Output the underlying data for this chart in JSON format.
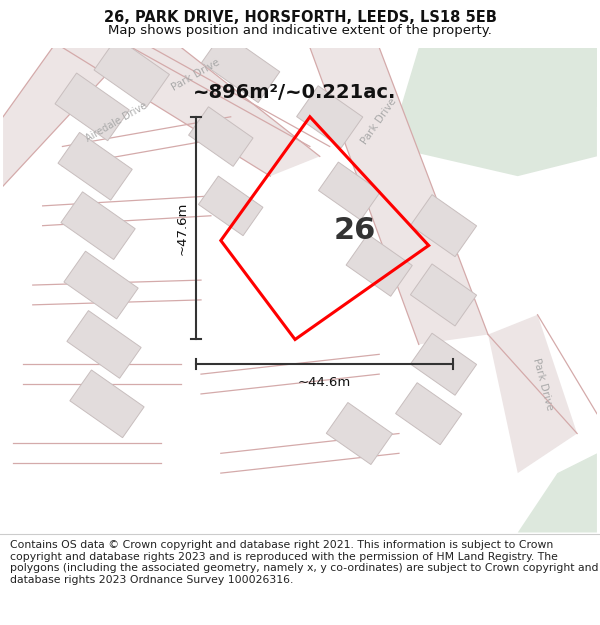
{
  "title": "26, PARK DRIVE, HORSFORTH, LEEDS, LS18 5EB",
  "subtitle": "Map shows position and indicative extent of the property.",
  "footer": "Contains OS data © Crown copyright and database right 2021. This information is subject to Crown copyright and database rights 2023 and is reproduced with the permission of HM Land Registry. The polygons (including the associated geometry, namely x, y co-ordinates) are subject to Crown copyright and database rights 2023 Ordnance Survey 100026316.",
  "area_label": "~896m²/~0.221ac.",
  "number_label": "26",
  "dim_h": "~47.6m",
  "dim_w": "~44.6m",
  "map_bg": "#f7f4f4",
  "green_color": "#dde8dd",
  "road_fill": "#ede5e5",
  "road_outline": "#d4aaaa",
  "building_fill": "#e2dcdc",
  "building_edge": "#c8bebe",
  "street_label_color": "#aaaaaa",
  "prop_color": "red",
  "title_fontsize": 10.5,
  "subtitle_fontsize": 9.5,
  "footer_fontsize": 7.8,
  "area_fontsize": 14,
  "number_fontsize": 22,
  "dim_fontsize": 9.5
}
